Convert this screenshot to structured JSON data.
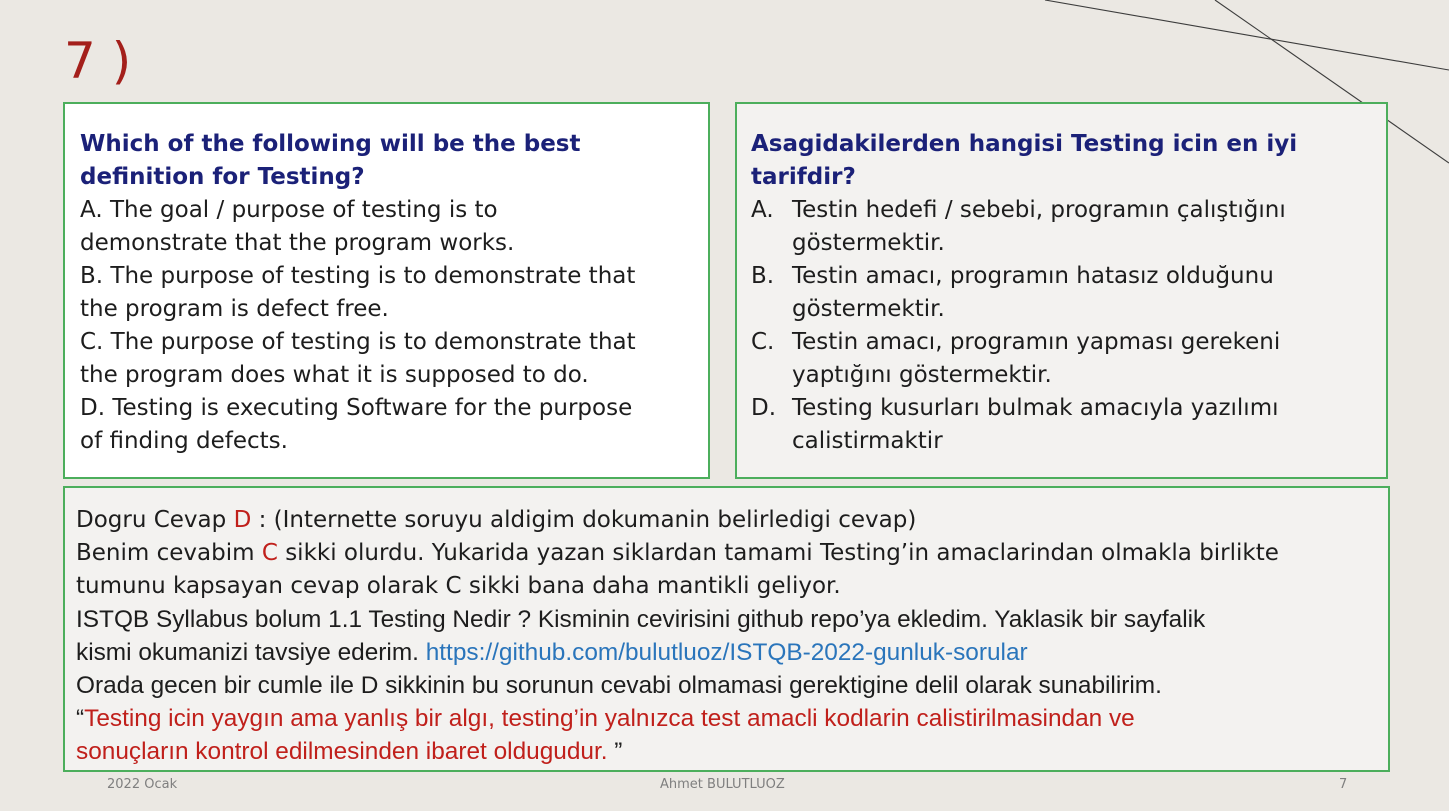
{
  "slide": {
    "number_label": "7 )"
  },
  "english": {
    "title_line1": "Which of the following will be the best",
    "title_line2": "definition for Testing?",
    "lines": [
      "A. The goal / purpose of testing is to",
      "demonstrate that the program works.",
      "B. The purpose of testing is to demonstrate that",
      "the program is defect free.",
      "C. The purpose of testing is to demonstrate that",
      "the program does what it is supposed to do.",
      "D. Testing is executing Software for the purpose",
      "of finding defects."
    ]
  },
  "turkish": {
    "title_line1": "Asagidakilerden hangisi Testing icin en iyi",
    "title_line2": "tarifdir?",
    "options": [
      {
        "letter": "A.",
        "line1": "Testin hedefi / sebebi, programın çalıştığını",
        "line2": "göstermektir."
      },
      {
        "letter": "B.",
        "line1": "Testin amacı, programın hatasız olduğunu",
        "line2": "göstermektir."
      },
      {
        "letter": "C.",
        "line1": "Testin amacı, programın yapması gerekeni",
        "line2": "yaptığını göstermektir."
      },
      {
        "letter": "D.",
        "line1": "Testing kusurları bulmak amacıyla yazılımı",
        "line2": "calistirmaktir"
      }
    ]
  },
  "answer": {
    "line1_prefix": "Dogru Cevap ",
    "correct_letter": "D",
    "line1_suffix": " : (Internette soruyu aldigim dokumanin belirledigi cevap)",
    "line2_prefix": "Benim cevabim ",
    "my_letter": "C",
    "line2_suffix": " sikki olurdu. Yukarida yazan siklardan tamami Testing’in amaclarindan olmakla birlikte",
    "line3": "tumunu kapsayan cevap olarak C sikki bana daha mantikli geliyor.",
    "line4": "ISTQB Syllabus bolum 1.1 Testing Nedir ? Kisminin cevirisini github repo’ya ekledim. Yaklasik bir sayfalik",
    "line5_prefix": "kismi okumanizi tavsiye ederim. ",
    "link_text": "https://github.com/bulutluoz/ISTQB-2022-gunluk-sorular",
    "line6": "Orada gecen bir cumle ile D sikkinin bu sorunun cevabi olmamasi gerektigine delil olarak sunabilirim.",
    "quote_open": "“",
    "quote_line1": "Testing icin yaygın ama yanlış bir algı, testing’in yalnızca test amacli kodlarin calistirilmasindan ve",
    "quote_line2": "sonuçların kontrol edilmesinden ibaret oldugudur.",
    "quote_close": " ”"
  },
  "footer": {
    "date": "2022 Ocak",
    "author": "Ahmet BULUTLUOZ",
    "page": "7"
  },
  "colors": {
    "background": "#ebe8e3",
    "box_border": "#4cae5c",
    "title_blue": "#1b2178",
    "accent_red": "#c0201b",
    "link_blue": "#2a75bb"
  }
}
